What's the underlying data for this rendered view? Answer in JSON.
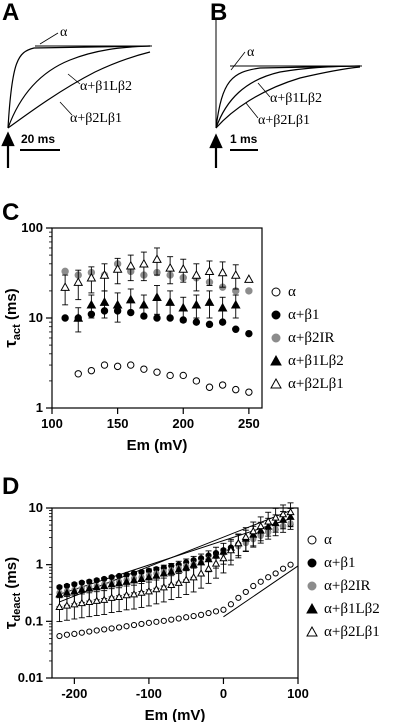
{
  "panels": {
    "A": {
      "label": "A",
      "annotations": [
        "α",
        "α+β1Lβ2",
        "α+β2Lβ1"
      ],
      "scale_bar": "20 ms"
    },
    "B": {
      "label": "B",
      "annotations": [
        "α",
        "α+β1Lβ2",
        "α+β2Lβ1"
      ],
      "scale_bar": "1 ms"
    }
  },
  "colors": {
    "black": "#000000",
    "gray": "#8c8c8c",
    "white": "#ffffff"
  },
  "chart_data": [
    {
      "panel": "C",
      "type": "scatter",
      "title": "",
      "xlabel": "Em (mV)",
      "ylabel_main": "τ",
      "ylabel_sub": "act",
      "ylabel_unit": " (ms)",
      "yscale": "log",
      "xlim": [
        100,
        260
      ],
      "ylim": [
        1,
        100
      ],
      "xticks": [
        100,
        150,
        200,
        250
      ],
      "yticks": [
        1,
        10,
        100
      ],
      "ytick_labels": [
        "1",
        "10",
        "100"
      ],
      "legend_position": "right",
      "series": [
        {
          "name": "α",
          "marker": "circle-open",
          "x": [
            120,
            130,
            140,
            150,
            160,
            170,
            180,
            190,
            200,
            210,
            220,
            230,
            240,
            250
          ],
          "y": [
            2.4,
            2.6,
            3.0,
            2.9,
            3.0,
            2.7,
            2.5,
            2.3,
            2.3,
            2.0,
            1.7,
            1.8,
            1.6,
            1.5
          ]
        },
        {
          "name": "α+β1",
          "marker": "circle-filled",
          "x": [
            110,
            120,
            130,
            140,
            150,
            160,
            170,
            180,
            190,
            200,
            210,
            220,
            230,
            240,
            250
          ],
          "y": [
            10,
            10,
            11,
            12,
            12,
            11.5,
            10.5,
            10,
            10,
            9.5,
            9,
            8.5,
            9,
            7.5,
            6.7
          ]
        },
        {
          "name": "α+β2IR",
          "marker": "circle-gray",
          "x": [
            110,
            120,
            130,
            140,
            150,
            160,
            170,
            180,
            190,
            200,
            210,
            220,
            230,
            240,
            250
          ],
          "y": [
            33,
            30,
            32,
            30,
            40,
            33,
            30,
            32,
            30,
            28,
            28,
            25,
            22,
            20,
            20
          ]
        },
        {
          "name": "α+β1Lβ2",
          "marker": "triangle-filled",
          "x": [
            120,
            130,
            140,
            150,
            160,
            170,
            180,
            190,
            200,
            210,
            220,
            230,
            240
          ],
          "y": [
            10,
            14,
            15,
            14,
            16,
            14,
            17,
            15,
            13,
            14,
            15,
            13,
            14
          ],
          "err": [
            3,
            4,
            5,
            5,
            5,
            4,
            6,
            5,
            4,
            4,
            5,
            4,
            4
          ]
        },
        {
          "name": "α+β2Lβ1",
          "marker": "triangle-open",
          "x": [
            110,
            120,
            130,
            140,
            150,
            160,
            170,
            180,
            190,
            200,
            210,
            220,
            230,
            240,
            250
          ],
          "y": [
            22,
            25,
            28,
            30,
            35,
            38,
            40,
            45,
            36,
            35,
            30,
            33,
            32,
            30,
            27
          ],
          "err": [
            8,
            9,
            9,
            10,
            11,
            12,
            14,
            15,
            12,
            10,
            10,
            10,
            10,
            9,
            0
          ]
        }
      ]
    },
    {
      "panel": "D",
      "type": "scatter",
      "title": "",
      "xlabel": "Em (mV)",
      "ylabel_main": "τ",
      "ylabel_sub": "deact",
      "ylabel_unit": " (ms)",
      "yscale": "log",
      "xlim": [
        -230,
        100
      ],
      "ylim": [
        0.01,
        10
      ],
      "xticks": [
        -200,
        -100,
        0,
        100
      ],
      "yticks": [
        0.01,
        0.1,
        1,
        10
      ],
      "ytick_labels": [
        "0.01",
        "0.1",
        "1",
        "10"
      ],
      "legend_position": "right",
      "series": [
        {
          "name": "α",
          "marker": "circle-open",
          "x": [
            -220,
            -210,
            -200,
            -190,
            -180,
            -170,
            -160,
            -150,
            -140,
            -130,
            -120,
            -110,
            -100,
            -90,
            -80,
            -70,
            -60,
            -50,
            -40,
            -30,
            -20,
            -10,
            0,
            10,
            20,
            30,
            40,
            50,
            60,
            70,
            80,
            90
          ],
          "y": [
            0.055,
            0.058,
            0.06,
            0.063,
            0.066,
            0.069,
            0.072,
            0.075,
            0.078,
            0.082,
            0.086,
            0.09,
            0.094,
            0.098,
            0.102,
            0.107,
            0.112,
            0.118,
            0.124,
            0.13,
            0.14,
            0.15,
            0.16,
            0.2,
            0.26,
            0.33,
            0.42,
            0.5,
            0.6,
            0.7,
            0.85,
            1.0
          ],
          "fits": [
            {
              "type": "line",
              "x": [
                0,
                100
              ],
              "y": [
                0.12,
                0.95
              ]
            }
          ]
        },
        {
          "name": "α+β1",
          "marker": "circle-filled",
          "x": [
            -220,
            -210,
            -200,
            -190,
            -180,
            -170,
            -160,
            -150,
            -140,
            -130,
            -120,
            -110,
            -100,
            -90,
            -80,
            -70,
            -60,
            -50,
            -40,
            -30,
            -20,
            -10,
            0,
            10,
            20,
            30,
            40,
            50,
            60,
            70,
            80,
            90
          ],
          "y": [
            0.4,
            0.42,
            0.45,
            0.48,
            0.5,
            0.53,
            0.56,
            0.6,
            0.63,
            0.66,
            0.7,
            0.74,
            0.78,
            0.83,
            0.88,
            0.95,
            1.0,
            1.1,
            1.2,
            1.3,
            1.45,
            1.6,
            1.8,
            2.0,
            2.3,
            2.6,
            3.0,
            3.3,
            3.8,
            4.2,
            4.8,
            5.2
          ]
        },
        {
          "name": "α+β2IR",
          "marker": "circle-gray",
          "x": [
            -220,
            -210,
            -200,
            -190,
            -180,
            -170,
            -160,
            -150,
            -140,
            -130,
            -120,
            -110,
            -100,
            -90,
            -80,
            -70,
            -60,
            -50,
            -40,
            -30,
            -20,
            -10,
            0,
            10,
            20,
            30,
            40,
            50,
            60,
            70,
            80,
            90
          ],
          "y": [
            0.32,
            0.34,
            0.36,
            0.38,
            0.4,
            0.42,
            0.45,
            0.48,
            0.5,
            0.54,
            0.57,
            0.6,
            0.65,
            0.7,
            0.75,
            0.8,
            0.87,
            0.95,
            1.02,
            1.1,
            1.25,
            1.4,
            1.6,
            1.8,
            2.1,
            2.4,
            2.8,
            3.2,
            3.7,
            4.2,
            4.8,
            5.4
          ]
        },
        {
          "name": "α+β1Lβ2",
          "marker": "triangle-filled",
          "x": [
            -220,
            -210,
            -200,
            -190,
            -180,
            -170,
            -160,
            -150,
            -140,
            -130,
            -120,
            -110,
            -100,
            -90,
            -80,
            -70,
            -60,
            -50,
            -40,
            -30,
            -20,
            -10,
            0,
            10,
            20,
            30,
            40,
            50,
            60,
            70,
            80,
            90
          ],
          "y": [
            0.3,
            0.32,
            0.34,
            0.36,
            0.38,
            0.4,
            0.42,
            0.45,
            0.47,
            0.5,
            0.53,
            0.56,
            0.6,
            0.64,
            0.7,
            0.75,
            0.82,
            0.9,
            1.0,
            1.1,
            1.25,
            1.45,
            1.7,
            2.0,
            2.4,
            2.9,
            3.4,
            4.0,
            4.7,
            5.4,
            6.2,
            7.0
          ],
          "err_rel": 0.4
        },
        {
          "name": "α+β2Lβ1",
          "marker": "triangle-open",
          "x": [
            -220,
            -210,
            -200,
            -190,
            -180,
            -170,
            -160,
            -150,
            -140,
            -130,
            -120,
            -110,
            -100,
            -90,
            -80,
            -70,
            -60,
            -50,
            -40,
            -30,
            -20,
            -10,
            0,
            10,
            20,
            30,
            40,
            50,
            60,
            70,
            80,
            90
          ],
          "y": [
            0.18,
            0.19,
            0.2,
            0.21,
            0.22,
            0.23,
            0.24,
            0.26,
            0.27,
            0.29,
            0.3,
            0.32,
            0.34,
            0.37,
            0.4,
            0.44,
            0.48,
            0.54,
            0.6,
            0.7,
            0.85,
            1.05,
            1.3,
            1.8,
            2.4,
            3.1,
            3.9,
            4.8,
            5.8,
            6.8,
            7.8,
            8.5
          ],
          "err_rel": 0.45,
          "fits": [
            {
              "type": "line",
              "x": [
                -220,
                90
              ],
              "y": [
                0.22,
                9.0
              ]
            },
            {
              "type": "line",
              "x": [
                -220,
                90
              ],
              "y": [
                0.3,
                6.5
              ]
            }
          ]
        }
      ]
    }
  ]
}
